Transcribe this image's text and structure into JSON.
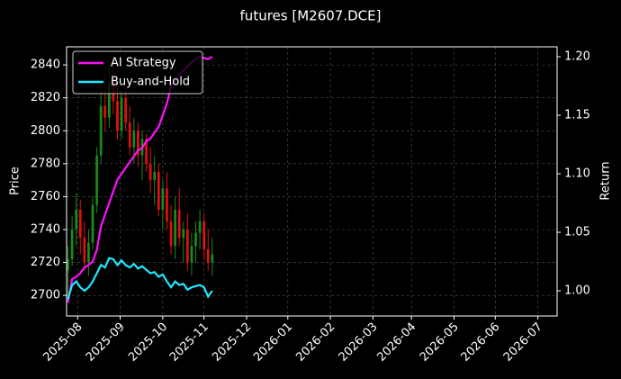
{
  "chart_data": {
    "type": "candlestick",
    "title": "futures [M2607.DCE]",
    "ylabel": "Price",
    "y2label": "Return",
    "x": [
      -7,
      -4,
      -1,
      2,
      5,
      8,
      11,
      14,
      17,
      20,
      23,
      26,
      29,
      32,
      35,
      38,
      41,
      44,
      47,
      50,
      53,
      56,
      59,
      62,
      65,
      68,
      71,
      74,
      77,
      80,
      83,
      86,
      89,
      92,
      95,
      98
    ],
    "open": [
      2715,
      2722,
      2740,
      2752,
      2735,
      2720,
      2732,
      2755,
      2785,
      2815,
      2808,
      2830,
      2818,
      2800,
      2820,
      2805,
      2790,
      2800,
      2785,
      2795,
      2780,
      2770,
      2775,
      2752,
      2765,
      2745,
      2730,
      2752,
      2735,
      2740,
      2720,
      2730,
      2738,
      2745,
      2728,
      2720
    ],
    "high": [
      2730,
      2748,
      2762,
      2758,
      2745,
      2740,
      2760,
      2790,
      2825,
      2835,
      2840,
      2842,
      2830,
      2825,
      2828,
      2815,
      2808,
      2805,
      2800,
      2798,
      2790,
      2785,
      2780,
      2770,
      2775,
      2755,
      2760,
      2765,
      2745,
      2750,
      2738,
      2745,
      2752,
      2750,
      2740,
      2735
    ],
    "low": [
      2700,
      2718,
      2730,
      2725,
      2715,
      2712,
      2728,
      2750,
      2780,
      2800,
      2802,
      2810,
      2795,
      2795,
      2800,
      2785,
      2780,
      2778,
      2770,
      2775,
      2762,
      2755,
      2748,
      2740,
      2740,
      2725,
      2722,
      2730,
      2720,
      2715,
      2712,
      2720,
      2728,
      2722,
      2715,
      2712
    ],
    "close": [
      2722,
      2740,
      2752,
      2735,
      2720,
      2732,
      2755,
      2785,
      2815,
      2808,
      2830,
      2818,
      2800,
      2820,
      2805,
      2790,
      2800,
      2785,
      2795,
      2780,
      2770,
      2775,
      2752,
      2765,
      2745,
      2730,
      2752,
      2735,
      2740,
      2720,
      2730,
      2738,
      2745,
      2728,
      2720,
      2725
    ],
    "up_color": "#1a8a1a",
    "down_color": "#e01010",
    "series": [
      {
        "name": "AI Strategy",
        "color": "#ff10ff",
        "axis": "y2",
        "values": [
          0.99,
          1.01,
          1.012,
          1.015,
          1.02,
          1.022,
          1.025,
          1.035,
          1.055,
          1.065,
          1.075,
          1.085,
          1.095,
          1.1,
          1.105,
          1.11,
          1.115,
          1.12,
          1.122,
          1.128,
          1.13,
          1.135,
          1.14,
          1.15,
          1.16,
          1.175,
          1.18,
          1.185,
          1.188,
          1.192,
          1.195,
          1.198,
          1.2,
          1.199,
          1.198,
          1.2
        ]
      },
      {
        "name": "Buy-and-Hold",
        "color": "#20e8ff",
        "axis": "y2",
        "values": [
          0.993,
          1.005,
          1.008,
          1.003,
          1.0,
          1.003,
          1.008,
          1.015,
          1.022,
          1.02,
          1.028,
          1.027,
          1.022,
          1.026,
          1.022,
          1.02,
          1.023,
          1.019,
          1.021,
          1.018,
          1.015,
          1.016,
          1.012,
          1.014,
          1.008,
          1.003,
          1.008,
          1.005,
          1.006,
          1.001,
          1.003,
          1.004,
          1.005,
          1.003,
          0.995,
          1.0
        ]
      }
    ],
    "xlim": [
      -8,
      349
    ],
    "xticks": [
      {
        "value": 0,
        "label": "2025-08"
      },
      {
        "value": 31,
        "label": "2025-09"
      },
      {
        "value": 62,
        "label": "2025-10"
      },
      {
        "value": 92,
        "label": "2025-11"
      },
      {
        "value": 123,
        "label": "2025-12"
      },
      {
        "value": 153,
        "label": "2026-01"
      },
      {
        "value": 184,
        "label": "2026-02"
      },
      {
        "value": 215,
        "label": "2026-03"
      },
      {
        "value": 243,
        "label": "2026-04"
      },
      {
        "value": 274,
        "label": "2026-05"
      },
      {
        "value": 304,
        "label": "2026-06"
      },
      {
        "value": 335,
        "label": "2026-07"
      }
    ],
    "ylim": [
      2687.5,
      2851
    ],
    "yticks": [
      2700,
      2720,
      2740,
      2760,
      2780,
      2800,
      2820,
      2840
    ],
    "y2lim": [
      0.9785,
      1.2085
    ],
    "y2ticks": [
      {
        "value": 1.0,
        "label": "1.00"
      },
      {
        "value": 1.05,
        "label": "1.05"
      },
      {
        "value": 1.1,
        "label": "1.10"
      },
      {
        "value": 1.15,
        "label": "1.15"
      },
      {
        "value": 1.2,
        "label": "1.20"
      }
    ],
    "grid": true,
    "legend": "upper left"
  }
}
